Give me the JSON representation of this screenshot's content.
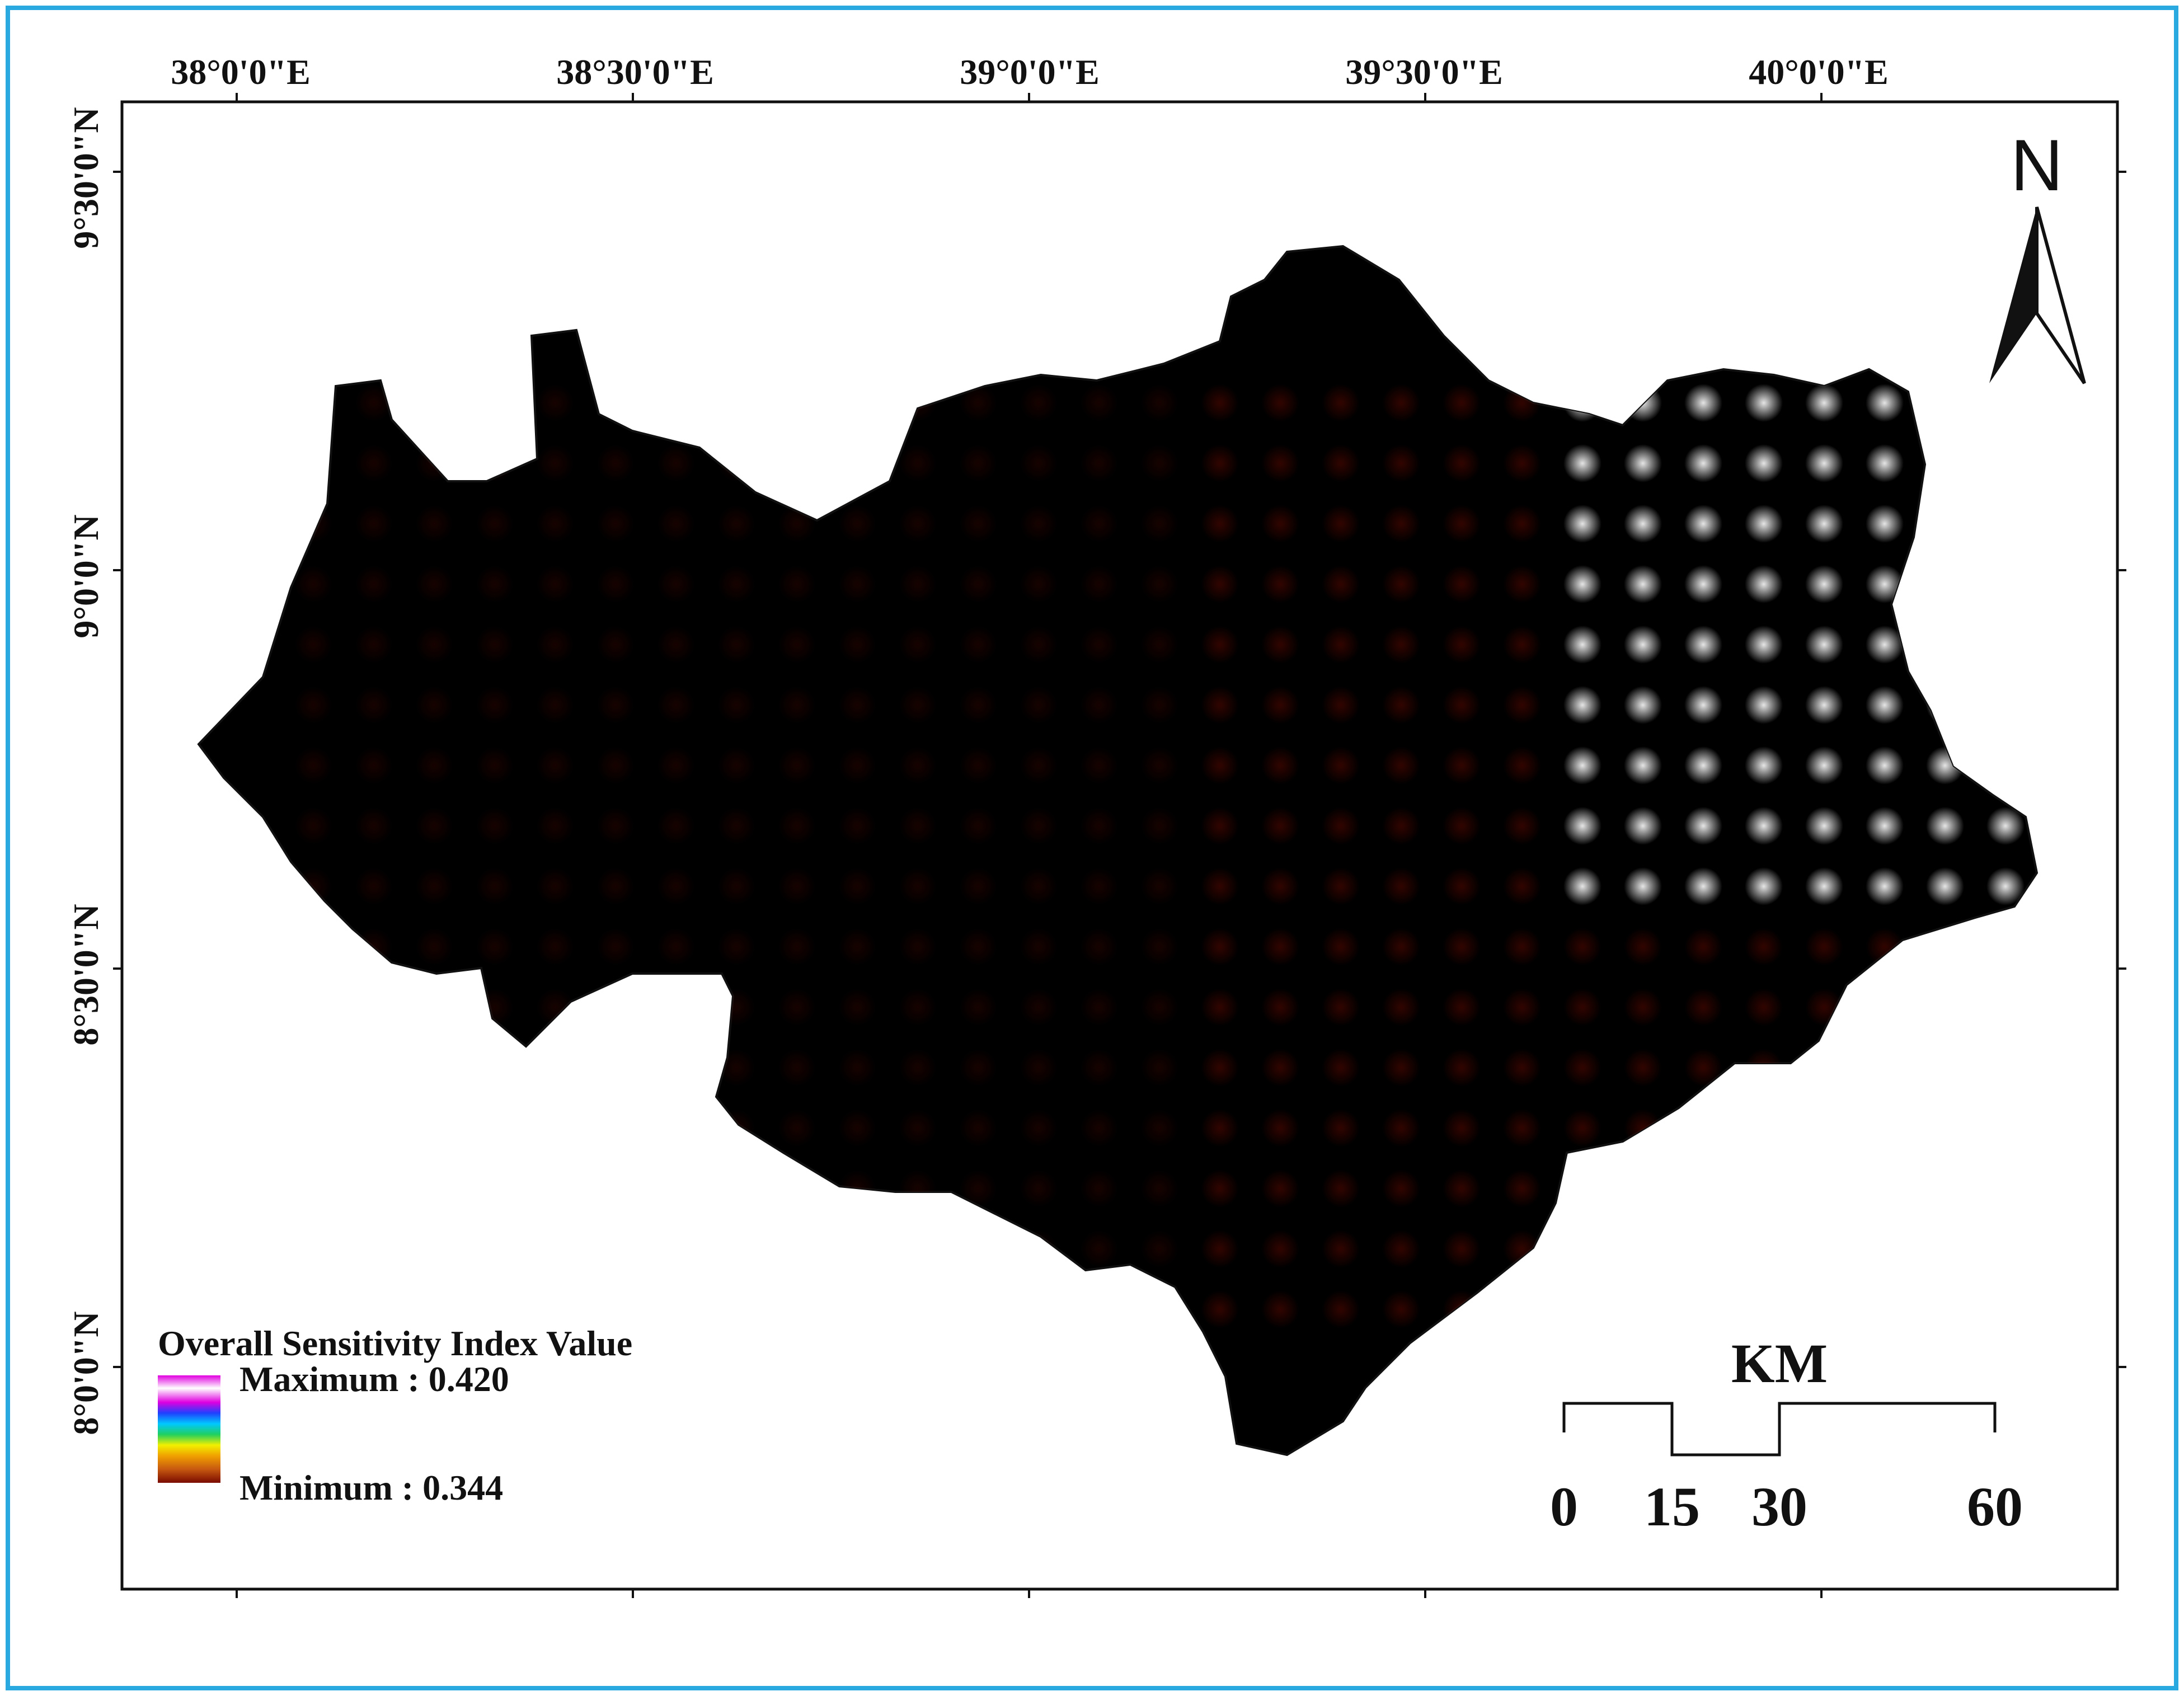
{
  "map": {
    "x_ticks": [
      "38°0'0\"E",
      "38°30'0\"E",
      "39°0'0\"E",
      "39°30'0\"E",
      "40°0'0\"E"
    ],
    "y_ticks": [
      "9°30'0\"N",
      "9°0'0\"N",
      "8°30'0\"N",
      "8°0'0\"N"
    ],
    "north_label": "N",
    "legend": {
      "title": "Overall Sensitivity Index Value",
      "max_label": "Maximum : 0.420",
      "min_label": "Minimum : 0.344",
      "max_value": 0.42,
      "min_value": 0.344
    },
    "scale_bar": {
      "unit": "KM",
      "labels": [
        "0",
        "15",
        "30",
        "60"
      ]
    },
    "colors": {
      "frame_border": "#29a9e0",
      "low": "#7a0a00",
      "mid": "#c85a10",
      "orange": "#f0a000",
      "yellow": "#f2f000",
      "green": "#20d060",
      "blue": "#2040ff",
      "magenta": "#e000e0",
      "high": "#ffffff"
    }
  }
}
